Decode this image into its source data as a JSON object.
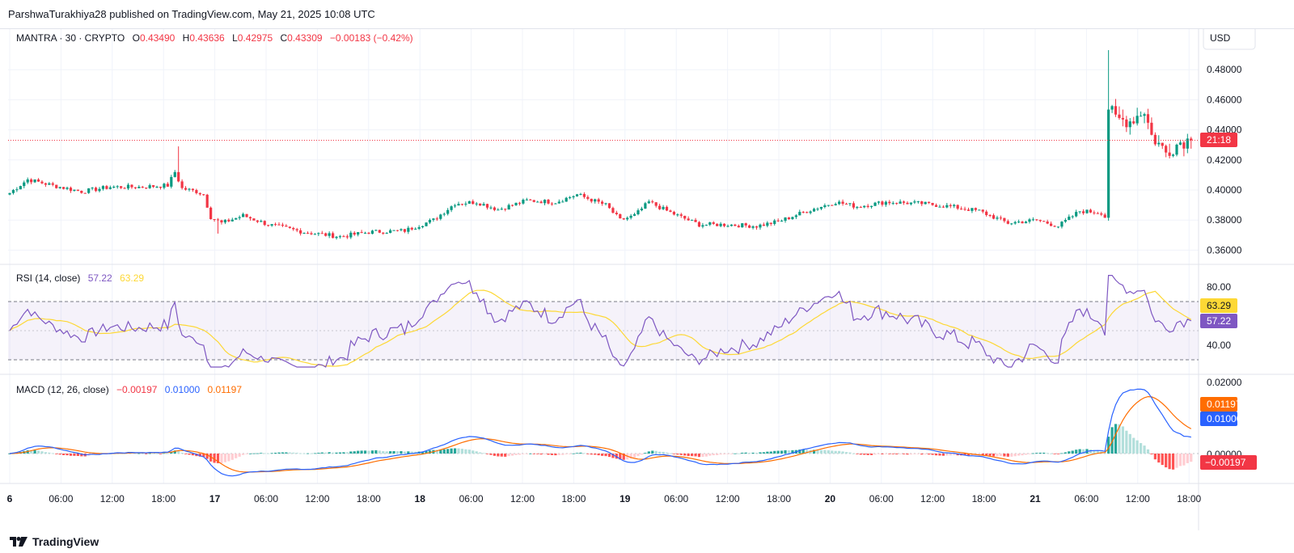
{
  "header": {
    "publisher_line": "ParshwaTurakhiya28 published on TradingView.com, May 21, 2025 10:08 UTC"
  },
  "footer": {
    "brand": "TradingView"
  },
  "colors": {
    "up": "#089981",
    "down": "#f23645",
    "rsi": "#7e57c2",
    "rsi_ma": "#fdd835",
    "macd": "#2962ff",
    "signal": "#ff6d00",
    "grid": "#f0f3fa"
  },
  "main_pane": {
    "symbol": "MANTRA · 30 · CRYPTO",
    "ohlc": {
      "o_label": "O",
      "o": "0.43490",
      "h_label": "H",
      "h": "0.43636",
      "l_label": "L",
      "l": "0.42975",
      "c_label": "C",
      "c": "0.43309",
      "change": "−0.00183 (−0.42%)"
    },
    "currency": "USD",
    "price_ticks": [
      "0.48000",
      "0.46000",
      "0.44000",
      "0.42000",
      "0.40000",
      "0.38000",
      "0.36000"
    ],
    "last_price_time": "21:18"
  },
  "rsi_pane": {
    "title": "RSI (14, close)",
    "rsi_value": "57.22",
    "ma_value": "63.29",
    "ticks": [
      "80.00",
      "40.00"
    ]
  },
  "macd_pane": {
    "title": "MACD (12, 26, close)",
    "hist_value": "−0.00197",
    "macd_value": "0.01000",
    "signal_value": "0.01197",
    "ticks": [
      "0.02000",
      "0.00000"
    ]
  },
  "time_axis": [
    "6",
    "06:00",
    "12:00",
    "18:00",
    "17",
    "06:00",
    "12:00",
    "18:00",
    "18",
    "06:00",
    "12:00",
    "18:00",
    "19",
    "06:00",
    "12:00",
    "18:00",
    "20",
    "06:00",
    "12:00",
    "18:00",
    "21",
    "06:00",
    "12:00",
    "18:00"
  ],
  "chart_data": [
    {
      "type": "candlestick",
      "title": "MANTRA · 30 · CRYPTO",
      "y_unit": "USD",
      "ylim": [
        0.35,
        0.495
      ],
      "x_start": "May 16, 2025 ~00:00 UTC",
      "interval": "30m",
      "price_anchors": [
        [
          0,
          0.398
        ],
        [
          5,
          0.407
        ],
        [
          12,
          0.403
        ],
        [
          20,
          0.399
        ],
        [
          28,
          0.402
        ],
        [
          36,
          0.402
        ],
        [
          44,
          0.403
        ],
        [
          46,
          0.412
        ],
        [
          48,
          0.401
        ],
        [
          52,
          0.399
        ],
        [
          54,
          0.397
        ],
        [
          56,
          0.382
        ],
        [
          59,
          0.378
        ],
        [
          65,
          0.383
        ],
        [
          72,
          0.377
        ],
        [
          82,
          0.372
        ],
        [
          92,
          0.369
        ],
        [
          100,
          0.372
        ],
        [
          110,
          0.373
        ],
        [
          118,
          0.38
        ],
        [
          124,
          0.391
        ],
        [
          130,
          0.392
        ],
        [
          136,
          0.387
        ],
        [
          144,
          0.393
        ],
        [
          152,
          0.392
        ],
        [
          158,
          0.397
        ],
        [
          166,
          0.39
        ],
        [
          170,
          0.38
        ],
        [
          174,
          0.383
        ],
        [
          178,
          0.392
        ],
        [
          184,
          0.385
        ],
        [
          192,
          0.377
        ],
        [
          200,
          0.377
        ],
        [
          208,
          0.376
        ],
        [
          214,
          0.379
        ],
        [
          222,
          0.386
        ],
        [
          230,
          0.392
        ],
        [
          236,
          0.389
        ],
        [
          244,
          0.392
        ],
        [
          254,
          0.391
        ],
        [
          262,
          0.389
        ],
        [
          270,
          0.386
        ],
        [
          278,
          0.378
        ],
        [
          286,
          0.38
        ],
        [
          292,
          0.376
        ],
        [
          298,
          0.386
        ],
        [
          304,
          0.385
        ],
        [
          305,
          0.382
        ],
        [
          306,
          0.455
        ],
        [
          308,
          0.447
        ],
        [
          312,
          0.446
        ],
        [
          316,
          0.453
        ],
        [
          318,
          0.436
        ],
        [
          322,
          0.425
        ],
        [
          326,
          0.432
        ],
        [
          328,
          0.433
        ]
      ],
      "spike_high": 0.493,
      "last_close": 0.43309
    },
    {
      "type": "line",
      "title": "RSI (14, close)",
      "ylim": [
        20,
        90
      ],
      "bands": {
        "upper": 70,
        "middle": 50,
        "lower": 30
      },
      "series": [
        {
          "name": "RSI",
          "last": 57.22
        },
        {
          "name": "RSI-based MA",
          "last": 63.29
        }
      ]
    },
    {
      "type": "line+bar",
      "title": "MACD (12, 26, close)",
      "ylim": [
        -0.0055,
        0.0205
      ],
      "series": [
        {
          "name": "MACD",
          "last": 0.01
        },
        {
          "name": "Signal",
          "last": 0.01197
        },
        {
          "name": "Histogram",
          "last": -0.00197
        }
      ]
    }
  ]
}
